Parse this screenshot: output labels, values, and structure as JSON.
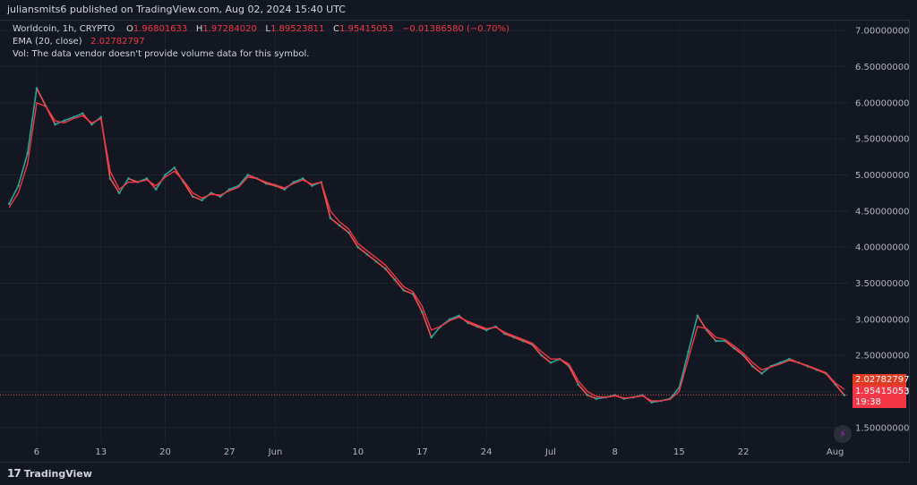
{
  "header": {
    "attribution": "juliansmits6 published on TradingView.com, Aug 02, 2024 15:40 UTC"
  },
  "legend": {
    "symbol": "Worldcoin, 1h, CRYPTO",
    "o_label": "O",
    "o_value": "1.96801633",
    "h_label": "H",
    "h_value": "1.97284020",
    "l_label": "L",
    "l_value": "1.89523811",
    "c_label": "C",
    "c_value": "1.95415053",
    "change": "−0.01386580 (−0.70%)",
    "ema_label": "EMA (20, close)",
    "ema_value": "2.02782797",
    "vol_note": "Vol: The data vendor doesn't provide volume data for this symbol."
  },
  "price_tags": {
    "ema": "2.02782797",
    "last": "1.95415053",
    "countdown": "19:38"
  },
  "branding": {
    "logo_text": "TradingView",
    "logo_mark": "17"
  },
  "colors": {
    "up": "#26a69a",
    "down": "#ef5350",
    "ema": "#f23645",
    "background": "#131722",
    "grid": "#1e222d",
    "axis_text": "#b2b5be"
  },
  "chart_data": {
    "type": "line",
    "series": [
      {
        "name": "Worldcoin",
        "x": [
          "2024-05-03",
          "2024-05-04",
          "2024-05-05",
          "2024-05-06",
          "2024-05-07",
          "2024-05-08",
          "2024-05-09",
          "2024-05-10",
          "2024-05-11",
          "2024-05-12",
          "2024-05-13",
          "2024-05-14",
          "2024-05-15",
          "2024-05-16",
          "2024-05-17",
          "2024-05-18",
          "2024-05-19",
          "2024-05-20",
          "2024-05-21",
          "2024-05-22",
          "2024-05-23",
          "2024-05-24",
          "2024-05-25",
          "2024-05-26",
          "2024-05-27",
          "2024-05-28",
          "2024-05-29",
          "2024-05-30",
          "2024-05-31",
          "2024-06-01",
          "2024-06-02",
          "2024-06-03",
          "2024-06-04",
          "2024-06-05",
          "2024-06-06",
          "2024-06-07",
          "2024-06-08",
          "2024-06-09",
          "2024-06-10",
          "2024-06-11",
          "2024-06-12",
          "2024-06-13",
          "2024-06-14",
          "2024-06-15",
          "2024-06-16",
          "2024-06-17",
          "2024-06-18",
          "2024-06-19",
          "2024-06-20",
          "2024-06-21",
          "2024-06-22",
          "2024-06-23",
          "2024-06-24",
          "2024-06-25",
          "2024-06-26",
          "2024-06-27",
          "2024-06-28",
          "2024-06-29",
          "2024-06-30",
          "2024-07-01",
          "2024-07-02",
          "2024-07-03",
          "2024-07-04",
          "2024-07-05",
          "2024-07-06",
          "2024-07-07",
          "2024-07-08",
          "2024-07-09",
          "2024-07-10",
          "2024-07-11",
          "2024-07-12",
          "2024-07-13",
          "2024-07-14",
          "2024-07-15",
          "2024-07-16",
          "2024-07-17",
          "2024-07-18",
          "2024-07-19",
          "2024-07-20",
          "2024-07-21",
          "2024-07-22",
          "2024-07-23",
          "2024-07-24",
          "2024-07-25",
          "2024-07-26",
          "2024-07-27",
          "2024-07-28",
          "2024-07-29",
          "2024-07-30",
          "2024-07-31",
          "2024-08-01",
          "2024-08-02"
        ],
        "values": [
          4.6,
          4.85,
          5.3,
          6.2,
          5.95,
          5.7,
          5.75,
          5.8,
          5.85,
          5.7,
          5.8,
          4.95,
          4.75,
          4.95,
          4.9,
          4.95,
          4.8,
          5.0,
          5.1,
          4.9,
          4.7,
          4.65,
          4.75,
          4.7,
          4.8,
          4.85,
          5.0,
          4.95,
          4.88,
          4.85,
          4.8,
          4.9,
          4.95,
          4.85,
          4.9,
          4.4,
          4.3,
          4.2,
          4.0,
          3.9,
          3.8,
          3.7,
          3.55,
          3.4,
          3.35,
          3.1,
          2.75,
          2.9,
          3.0,
          3.05,
          2.95,
          2.9,
          2.85,
          2.9,
          2.8,
          2.75,
          2.7,
          2.65,
          2.5,
          2.4,
          2.45,
          2.35,
          2.1,
          1.95,
          1.9,
          1.92,
          1.95,
          1.9,
          1.92,
          1.95,
          1.85,
          1.87,
          1.9,
          2.05,
          2.55,
          3.05,
          2.85,
          2.7,
          2.7,
          2.6,
          2.5,
          2.35,
          2.25,
          2.35,
          2.4,
          2.45,
          2.4,
          2.35,
          2.3,
          2.25,
          2.1,
          1.95
        ]
      },
      {
        "name": "EMA (20, close)",
        "x": [
          "2024-05-03",
          "2024-05-04",
          "2024-05-05",
          "2024-05-06",
          "2024-05-07",
          "2024-05-08",
          "2024-05-09",
          "2024-05-10",
          "2024-05-11",
          "2024-05-12",
          "2024-05-13",
          "2024-05-14",
          "2024-05-15",
          "2024-05-16",
          "2024-05-17",
          "2024-05-18",
          "2024-05-19",
          "2024-05-20",
          "2024-05-21",
          "2024-05-22",
          "2024-05-23",
          "2024-05-24",
          "2024-05-25",
          "2024-05-26",
          "2024-05-27",
          "2024-05-28",
          "2024-05-29",
          "2024-05-30",
          "2024-05-31",
          "2024-06-01",
          "2024-06-02",
          "2024-06-03",
          "2024-06-04",
          "2024-06-05",
          "2024-06-06",
          "2024-06-07",
          "2024-06-08",
          "2024-06-09",
          "2024-06-10",
          "2024-06-11",
          "2024-06-12",
          "2024-06-13",
          "2024-06-14",
          "2024-06-15",
          "2024-06-16",
          "2024-06-17",
          "2024-06-18",
          "2024-06-19",
          "2024-06-20",
          "2024-06-21",
          "2024-06-22",
          "2024-06-23",
          "2024-06-24",
          "2024-06-25",
          "2024-06-26",
          "2024-06-27",
          "2024-06-28",
          "2024-06-29",
          "2024-06-30",
          "2024-07-01",
          "2024-07-02",
          "2024-07-03",
          "2024-07-04",
          "2024-07-05",
          "2024-07-06",
          "2024-07-07",
          "2024-07-08",
          "2024-07-09",
          "2024-07-10",
          "2024-07-11",
          "2024-07-12",
          "2024-07-13",
          "2024-07-14",
          "2024-07-15",
          "2024-07-16",
          "2024-07-17",
          "2024-07-18",
          "2024-07-19",
          "2024-07-20",
          "2024-07-21",
          "2024-07-22",
          "2024-07-23",
          "2024-07-24",
          "2024-07-25",
          "2024-07-26",
          "2024-07-27",
          "2024-07-28",
          "2024-07-29",
          "2024-07-30",
          "2024-07-31",
          "2024-08-01",
          "2024-08-02"
        ],
        "values": [
          4.55,
          4.75,
          5.15,
          6.0,
          5.95,
          5.75,
          5.72,
          5.78,
          5.82,
          5.72,
          5.78,
          5.05,
          4.8,
          4.9,
          4.9,
          4.93,
          4.85,
          4.97,
          5.05,
          4.92,
          4.75,
          4.68,
          4.73,
          4.72,
          4.78,
          4.83,
          4.97,
          4.95,
          4.9,
          4.86,
          4.82,
          4.88,
          4.93,
          4.87,
          4.9,
          4.5,
          4.35,
          4.25,
          4.05,
          3.95,
          3.85,
          3.75,
          3.6,
          3.45,
          3.38,
          3.18,
          2.85,
          2.9,
          2.98,
          3.03,
          2.97,
          2.92,
          2.87,
          2.89,
          2.82,
          2.77,
          2.72,
          2.67,
          2.55,
          2.45,
          2.45,
          2.38,
          2.15,
          2.0,
          1.93,
          1.92,
          1.94,
          1.91,
          1.92,
          1.94,
          1.87,
          1.87,
          1.89,
          2.0,
          2.45,
          2.9,
          2.87,
          2.75,
          2.72,
          2.63,
          2.53,
          2.4,
          2.3,
          2.34,
          2.38,
          2.43,
          2.4,
          2.36,
          2.31,
          2.26,
          2.12,
          2.03
        ]
      }
    ],
    "xlabel": "",
    "ylabel": "",
    "ylim": [
      1.3,
      7.1
    ],
    "yticks": [
      "1.50000000",
      "2.00000000",
      "2.50000000",
      "3.00000000",
      "3.50000000",
      "4.00000000",
      "4.50000000",
      "5.00000000",
      "5.50000000",
      "6.00000000",
      "6.50000000",
      "7.00000000"
    ],
    "ytick_values": [
      1.5,
      2.0,
      2.5,
      3.0,
      3.5,
      4.0,
      4.5,
      5.0,
      5.5,
      6.0,
      6.5,
      7.0
    ],
    "xtick_labels": [
      "6",
      "13",
      "20",
      "27",
      "Jun",
      "10",
      "17",
      "24",
      "Jul",
      "8",
      "15",
      "22",
      "Aug"
    ],
    "xtick_dates": [
      "2024-05-06",
      "2024-05-13",
      "2024-05-20",
      "2024-05-27",
      "2024-06-01",
      "2024-06-10",
      "2024-06-17",
      "2024-06-24",
      "2024-07-01",
      "2024-07-08",
      "2024-07-15",
      "2024-07-22",
      "2024-08-01"
    ],
    "last_price_line": 1.95415053,
    "grid": true,
    "legend_position": "top-left"
  }
}
